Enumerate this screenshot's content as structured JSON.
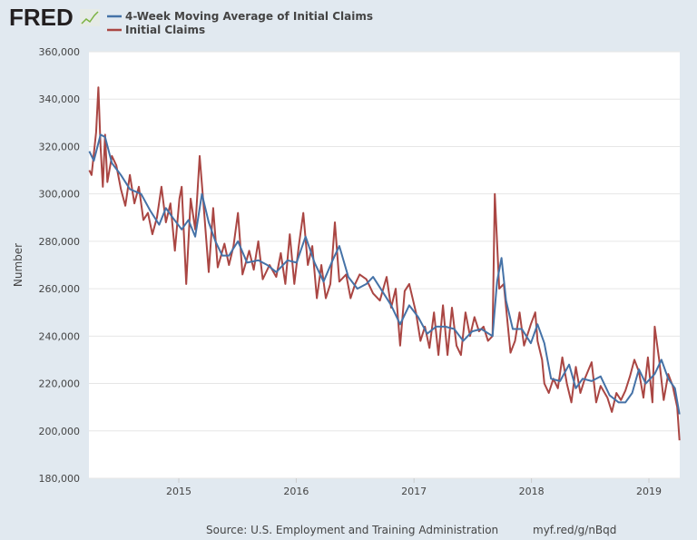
{
  "logo_text": "FRED",
  "chart_data": {
    "type": "line",
    "title": "",
    "xlabel": "",
    "ylabel": "Number",
    "ylim": [
      180000,
      360000
    ],
    "xlim": [
      "2014-03-29",
      "2019-04-06"
    ],
    "grid": "horizontal",
    "legend_position": "top-left",
    "y_ticks": [
      "180,000",
      "200,000",
      "220,000",
      "240,000",
      "260,000",
      "280,000",
      "300,000",
      "320,000",
      "340,000",
      "360,000"
    ],
    "x_ticks": [
      "2015",
      "2016",
      "2017",
      "2018",
      "2019"
    ],
    "source": "Source: U.S. Employment and Training Administration",
    "short_url": "myf.red/g/nBqd",
    "series": [
      {
        "name": "4-Week Moving Average of Initial Claims",
        "color": "#4572a7",
        "points": [
          [
            "2014-03-29",
            318000
          ],
          [
            "2014-04-12",
            314000
          ],
          [
            "2014-05-03",
            325000
          ],
          [
            "2014-05-17",
            324000
          ],
          [
            "2014-06-07",
            313000
          ],
          [
            "2014-07-05",
            308000
          ],
          [
            "2014-08-02",
            302000
          ],
          [
            "2014-09-06",
            300000
          ],
          [
            "2014-10-04",
            293000
          ],
          [
            "2014-11-01",
            287000
          ],
          [
            "2014-11-22",
            294000
          ],
          [
            "2014-12-13",
            290000
          ],
          [
            "2015-01-10",
            285000
          ],
          [
            "2015-01-31",
            289000
          ],
          [
            "2015-02-21",
            282000
          ],
          [
            "2015-03-14",
            300000
          ],
          [
            "2015-04-04",
            288000
          ],
          [
            "2015-04-25",
            280000
          ],
          [
            "2015-05-16",
            274000
          ],
          [
            "2015-06-06",
            274000
          ],
          [
            "2015-07-04",
            280000
          ],
          [
            "2015-08-01",
            271000
          ],
          [
            "2015-09-05",
            272000
          ],
          [
            "2015-10-03",
            270000
          ],
          [
            "2015-10-31",
            267000
          ],
          [
            "2015-12-05",
            272000
          ],
          [
            "2016-01-02",
            271000
          ],
          [
            "2016-01-30",
            282000
          ],
          [
            "2016-02-27",
            271000
          ],
          [
            "2016-03-26",
            263000
          ],
          [
            "2016-04-23",
            272000
          ],
          [
            "2016-05-14",
            278000
          ],
          [
            "2016-06-11",
            265000
          ],
          [
            "2016-07-09",
            260000
          ],
          [
            "2016-08-06",
            262000
          ],
          [
            "2016-08-27",
            265000
          ],
          [
            "2016-09-24",
            259000
          ],
          [
            "2016-10-22",
            253000
          ],
          [
            "2016-11-19",
            245000
          ],
          [
            "2016-12-17",
            253000
          ],
          [
            "2017-01-14",
            248000
          ],
          [
            "2017-02-11",
            241000
          ],
          [
            "2017-03-11",
            244000
          ],
          [
            "2017-04-08",
            244000
          ],
          [
            "2017-05-06",
            243000
          ],
          [
            "2017-06-03",
            238000
          ],
          [
            "2017-07-01",
            242000
          ],
          [
            "2017-07-29",
            243000
          ],
          [
            "2017-09-02",
            240000
          ],
          [
            "2017-09-16",
            263000
          ],
          [
            "2017-09-30",
            273000
          ],
          [
            "2017-10-14",
            255000
          ],
          [
            "2017-11-04",
            243000
          ],
          [
            "2017-12-02",
            243000
          ],
          [
            "2017-12-30",
            237000
          ],
          [
            "2018-01-20",
            245000
          ],
          [
            "2018-02-10",
            237000
          ],
          [
            "2018-03-03",
            222000
          ],
          [
            "2018-03-31",
            221000
          ],
          [
            "2018-04-28",
            228000
          ],
          [
            "2018-05-19",
            218000
          ],
          [
            "2018-06-09",
            222000
          ],
          [
            "2018-07-07",
            221000
          ],
          [
            "2018-08-04",
            223000
          ],
          [
            "2018-09-01",
            215000
          ],
          [
            "2018-09-29",
            212000
          ],
          [
            "2018-10-20",
            212000
          ],
          [
            "2018-11-10",
            216000
          ],
          [
            "2018-12-01",
            226000
          ],
          [
            "2018-12-22",
            220000
          ],
          [
            "2019-01-19",
            224000
          ],
          [
            "2019-02-09",
            230000
          ],
          [
            "2019-03-02",
            222000
          ],
          [
            "2019-03-23",
            218000
          ],
          [
            "2019-04-06",
            207000
          ]
        ]
      },
      {
        "name": "Initial Claims",
        "color": "#aa4643",
        "points": [
          [
            "2014-03-29",
            310000
          ],
          [
            "2014-04-05",
            308000
          ],
          [
            "2014-04-19",
            326000
          ],
          [
            "2014-04-26",
            345000
          ],
          [
            "2014-05-03",
            320000
          ],
          [
            "2014-05-10",
            303000
          ],
          [
            "2014-05-17",
            325000
          ],
          [
            "2014-05-24",
            305000
          ],
          [
            "2014-06-07",
            316000
          ],
          [
            "2014-06-21",
            312000
          ],
          [
            "2014-07-05",
            302000
          ],
          [
            "2014-07-19",
            295000
          ],
          [
            "2014-08-02",
            308000
          ],
          [
            "2014-08-16",
            296000
          ],
          [
            "2014-08-30",
            303000
          ],
          [
            "2014-09-13",
            289000
          ],
          [
            "2014-09-27",
            292000
          ],
          [
            "2014-10-11",
            283000
          ],
          [
            "2014-10-25",
            290000
          ],
          [
            "2014-11-08",
            303000
          ],
          [
            "2014-11-22",
            288000
          ],
          [
            "2014-12-06",
            296000
          ],
          [
            "2014-12-20",
            276000
          ],
          [
            "2015-01-03",
            298000
          ],
          [
            "2015-01-10",
            303000
          ],
          [
            "2015-01-24",
            262000
          ],
          [
            "2015-02-07",
            298000
          ],
          [
            "2015-02-21",
            285000
          ],
          [
            "2015-03-07",
            316000
          ],
          [
            "2015-03-21",
            292000
          ],
          [
            "2015-04-04",
            267000
          ],
          [
            "2015-04-18",
            294000
          ],
          [
            "2015-05-02",
            269000
          ],
          [
            "2015-05-23",
            279000
          ],
          [
            "2015-06-06",
            270000
          ],
          [
            "2015-06-20",
            278000
          ],
          [
            "2015-07-04",
            292000
          ],
          [
            "2015-07-18",
            266000
          ],
          [
            "2015-08-08",
            276000
          ],
          [
            "2015-08-22",
            268000
          ],
          [
            "2015-09-05",
            280000
          ],
          [
            "2015-09-19",
            264000
          ],
          [
            "2015-10-10",
            270000
          ],
          [
            "2015-10-31",
            265000
          ],
          [
            "2015-11-14",
            275000
          ],
          [
            "2015-11-28",
            262000
          ],
          [
            "2015-12-12",
            283000
          ],
          [
            "2015-12-26",
            262000
          ],
          [
            "2016-01-09",
            278000
          ],
          [
            "2016-01-23",
            292000
          ],
          [
            "2016-02-06",
            270000
          ],
          [
            "2016-02-20",
            278000
          ],
          [
            "2016-03-05",
            256000
          ],
          [
            "2016-03-19",
            270000
          ],
          [
            "2016-04-02",
            256000
          ],
          [
            "2016-04-16",
            262000
          ],
          [
            "2016-04-30",
            288000
          ],
          [
            "2016-05-14",
            263000
          ],
          [
            "2016-06-04",
            266000
          ],
          [
            "2016-06-18",
            256000
          ],
          [
            "2016-07-02",
            262000
          ],
          [
            "2016-07-16",
            266000
          ],
          [
            "2016-08-06",
            264000
          ],
          [
            "2016-08-27",
            258000
          ],
          [
            "2016-09-17",
            255000
          ],
          [
            "2016-10-08",
            265000
          ],
          [
            "2016-10-22",
            252000
          ],
          [
            "2016-11-05",
            260000
          ],
          [
            "2016-11-19",
            236000
          ],
          [
            "2016-12-03",
            259000
          ],
          [
            "2016-12-17",
            262000
          ],
          [
            "2017-01-07",
            250000
          ],
          [
            "2017-01-21",
            238000
          ],
          [
            "2017-02-04",
            244000
          ],
          [
            "2017-02-18",
            235000
          ],
          [
            "2017-03-04",
            250000
          ],
          [
            "2017-03-18",
            232000
          ],
          [
            "2017-04-01",
            253000
          ],
          [
            "2017-04-15",
            232000
          ],
          [
            "2017-04-29",
            252000
          ],
          [
            "2017-05-13",
            236000
          ],
          [
            "2017-05-27",
            232000
          ],
          [
            "2017-06-10",
            250000
          ],
          [
            "2017-06-24",
            240000
          ],
          [
            "2017-07-08",
            248000
          ],
          [
            "2017-07-22",
            242000
          ],
          [
            "2017-08-05",
            244000
          ],
          [
            "2017-08-19",
            238000
          ],
          [
            "2017-09-02",
            240000
          ],
          [
            "2017-09-09",
            300000
          ],
          [
            "2017-09-23",
            260000
          ],
          [
            "2017-10-07",
            262000
          ],
          [
            "2017-10-28",
            233000
          ],
          [
            "2017-11-11",
            238000
          ],
          [
            "2017-11-25",
            250000
          ],
          [
            "2017-12-09",
            236000
          ],
          [
            "2017-12-30",
            245000
          ],
          [
            "2018-01-13",
            250000
          ],
          [
            "2018-01-20",
            238000
          ],
          [
            "2018-02-03",
            230000
          ],
          [
            "2018-02-10",
            220000
          ],
          [
            "2018-02-24",
            216000
          ],
          [
            "2018-03-10",
            222000
          ],
          [
            "2018-03-24",
            218000
          ],
          [
            "2018-04-07",
            231000
          ],
          [
            "2018-04-21",
            220000
          ],
          [
            "2018-05-05",
            212000
          ],
          [
            "2018-05-19",
            227000
          ],
          [
            "2018-06-02",
            216000
          ],
          [
            "2018-06-16",
            222000
          ],
          [
            "2018-07-07",
            229000
          ],
          [
            "2018-07-21",
            212000
          ],
          [
            "2018-08-04",
            219000
          ],
          [
            "2018-08-25",
            214000
          ],
          [
            "2018-09-08",
            208000
          ],
          [
            "2018-09-22",
            216000
          ],
          [
            "2018-10-06",
            213000
          ],
          [
            "2018-10-20",
            217000
          ],
          [
            "2018-11-03",
            223000
          ],
          [
            "2018-11-17",
            230000
          ],
          [
            "2018-12-01",
            225000
          ],
          [
            "2018-12-15",
            214000
          ],
          [
            "2018-12-29",
            231000
          ],
          [
            "2019-01-12",
            212000
          ],
          [
            "2019-01-19",
            244000
          ],
          [
            "2019-02-02",
            230000
          ],
          [
            "2019-02-16",
            213000
          ],
          [
            "2019-03-02",
            224000
          ],
          [
            "2019-03-16",
            219000
          ],
          [
            "2019-03-30",
            210000
          ],
          [
            "2019-04-06",
            196000
          ]
        ]
      }
    ]
  }
}
